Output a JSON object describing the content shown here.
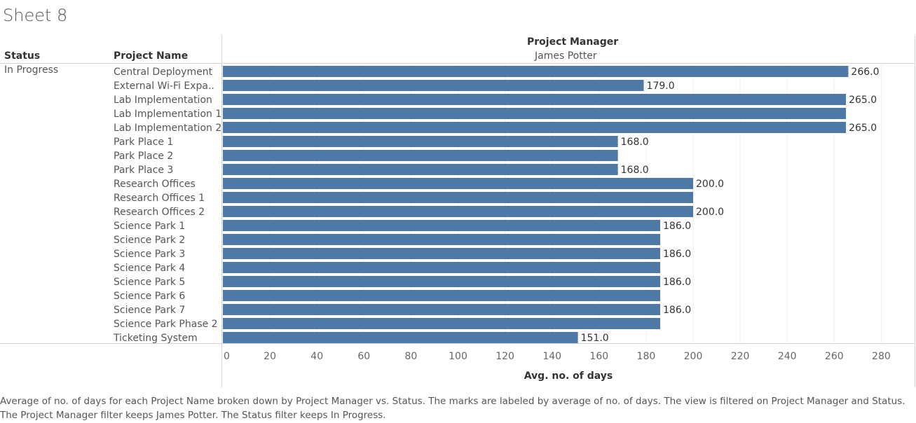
{
  "sheet_title": "Sheet 8",
  "headers": {
    "status": "Status",
    "project_name": "Project Name",
    "project_manager_title": "Project Manager",
    "project_manager_value": "James Potter"
  },
  "status_value": "In Progress",
  "caption": "Average of no. of days for each Project Name broken down by Project Manager vs. Status.  The marks are labeled by average of no. of days. The view is filtered on Project Manager and Status. The Project Manager filter keeps James Potter. The Status filter keeps In Progress.",
  "colors": {
    "bar": "#4e79a7",
    "gridline": "#eeeeee",
    "divider": "#d4d4d4"
  },
  "chart_data": {
    "type": "bar",
    "orientation": "horizontal",
    "xlabel": "Avg. no. of days",
    "xlim": [
      0,
      290
    ],
    "xticks": [
      0,
      20,
      40,
      60,
      80,
      100,
      120,
      140,
      160,
      180,
      200,
      220,
      240,
      260,
      280
    ],
    "grid": true,
    "categories": [
      "Central Deployment",
      "External Wi-Fi Expa..",
      "Lab Implementation",
      "Lab Implementation 1",
      "Lab Implementation 2",
      "Park Place 1",
      "Park Place 2",
      "Park Place 3",
      "Research Offices",
      "Research Offices 1",
      "Research Offices 2",
      "Science Park 1",
      "Science Park 2",
      "Science Park 3",
      "Science Park 4",
      "Science Park 5",
      "Science Park 6",
      "Science Park 7",
      "Science Park Phase 2",
      "Ticketing System"
    ],
    "values": [
      266,
      179,
      265,
      265,
      265,
      168,
      168,
      168,
      200,
      200,
      200,
      186,
      186,
      186,
      186,
      186,
      186,
      186,
      186,
      151
    ],
    "data_labels": [
      "266.0",
      "179.0",
      "265.0",
      "",
      "265.0",
      "168.0",
      "",
      "168.0",
      "200.0",
      "",
      "200.0",
      "186.0",
      "",
      "186.0",
      "",
      "186.0",
      "",
      "186.0",
      "",
      "151.0"
    ]
  }
}
